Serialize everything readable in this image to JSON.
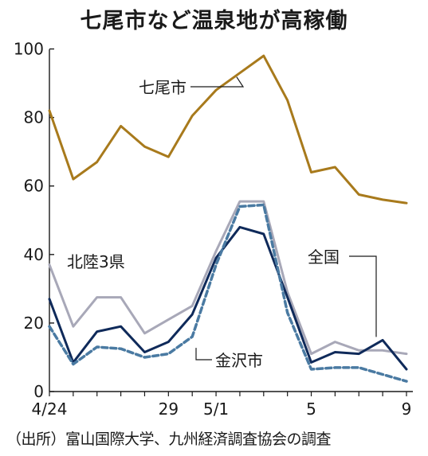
{
  "chart_data": {
    "type": "line",
    "title": "七尾市など温泉地が高稼働",
    "source": "（出所）富山国際大学、九州経済調査協会の調査",
    "x": [
      "4/24",
      "4/25",
      "4/26",
      "4/27",
      "4/28",
      "4/29",
      "4/30",
      "5/1",
      "5/2",
      "5/3",
      "5/4",
      "5/5",
      "5/6",
      "5/7",
      "5/8",
      "5/9"
    ],
    "x_tick_labels": [
      "4/24",
      "29",
      "5/1",
      "5",
      "9"
    ],
    "y_ticks": [
      0,
      20,
      40,
      60,
      80,
      100
    ],
    "ylim": [
      0,
      105
    ],
    "grid": false,
    "series": [
      {
        "name": "七尾市",
        "color": "#a87a1c",
        "style": "solid",
        "values": [
          82,
          62,
          67,
          77.5,
          71.5,
          68.5,
          80.5,
          88,
          93,
          98,
          85,
          64,
          65.5,
          57.5,
          56,
          55
        ]
      },
      {
        "name": "北陸3県",
        "color": "#a8a8b8",
        "style": "solid",
        "values": [
          37,
          19,
          27.5,
          27.5,
          17,
          21,
          25,
          41,
          55.5,
          55.5,
          29,
          11,
          14.5,
          12,
          12,
          11
        ]
      },
      {
        "name": "全国",
        "color": "#0f2a5a",
        "style": "solid",
        "values": [
          27,
          8.5,
          17.5,
          19,
          11.5,
          14.5,
          22.5,
          39,
          48,
          46,
          27.5,
          8.5,
          11.5,
          11,
          15,
          6.5
        ]
      },
      {
        "name": "金沢市",
        "color": "#4a7aa2",
        "style": "dashed",
        "values": [
          19,
          8,
          13,
          12.5,
          10,
          11,
          16,
          37,
          54,
          54.5,
          23,
          6.5,
          7,
          7,
          5,
          3
        ]
      }
    ]
  }
}
